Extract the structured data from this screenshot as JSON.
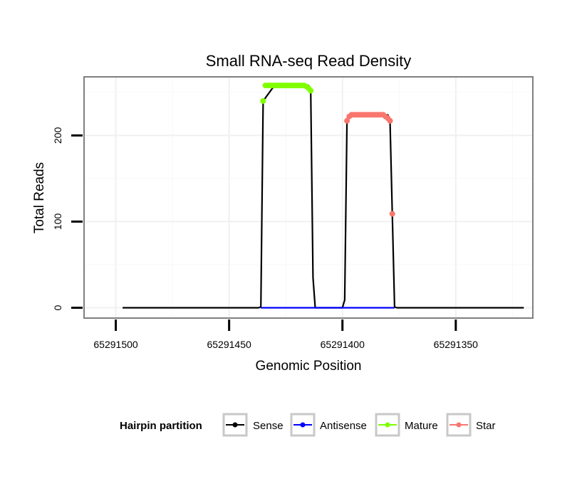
{
  "chart_data": {
    "type": "line",
    "title": "Small RNA-seq Read Density",
    "xlabel": "Genomic Position",
    "ylabel": "Total Reads",
    "x_reversed": true,
    "xlim": [
      65291514,
      65291316
    ],
    "ylim": [
      -12,
      268
    ],
    "x_ticks": [
      {
        "value": 65291500,
        "label": "65291500"
      },
      {
        "value": 65291450,
        "label": "65291450"
      },
      {
        "value": 65291400,
        "label": "65291400"
      },
      {
        "value": 65291350,
        "label": "65291350"
      }
    ],
    "y_ticks": [
      {
        "value": 0,
        "label": "0"
      },
      {
        "value": 100,
        "label": "100"
      },
      {
        "value": 200,
        "label": "200"
      }
    ],
    "grid": true,
    "series": [
      {
        "name": "Sense",
        "color": "#000000",
        "marker": false,
        "x": [
          65291497,
          65291437,
          65291436,
          65291435,
          65291430,
          65291420,
          65291415,
          65291414,
          65291413,
          65291412,
          65291400,
          65291399,
          65291398,
          65291397,
          65291380,
          65291379,
          65291378,
          65291377,
          65291376,
          65291320
        ],
        "y": [
          0,
          0,
          1,
          240,
          258,
          258,
          258,
          252,
          35,
          0,
          0,
          9,
          217,
          224,
          224,
          217,
          109,
          1,
          0,
          0
        ]
      },
      {
        "name": "Antisense",
        "color": "#0000ff",
        "marker": false,
        "x": [
          65291436,
          65291377
        ],
        "y": [
          0,
          0
        ]
      },
      {
        "name": "Mature",
        "color": "#7fff00",
        "marker": true,
        "x": [
          65291435,
          65291434,
          65291433,
          65291432,
          65291431,
          65291430,
          65291429,
          65291428,
          65291427,
          65291426,
          65291425,
          65291424,
          65291423,
          65291422,
          65291421,
          65291420,
          65291419,
          65291418,
          65291417,
          65291416,
          65291415,
          65291414
        ],
        "y": [
          240,
          258,
          258,
          258,
          258,
          258,
          258,
          258,
          258,
          258,
          258,
          258,
          258,
          258,
          258,
          258,
          258,
          258,
          258,
          257,
          255,
          252
        ]
      },
      {
        "name": "Star",
        "color": "#f8766d",
        "marker": true,
        "x": [
          65291398,
          65291397,
          65291396,
          65291395,
          65291394,
          65291393,
          65291392,
          65291391,
          65291390,
          65291389,
          65291388,
          65291387,
          65291386,
          65291385,
          65291384,
          65291383,
          65291382,
          65291381,
          65291380,
          65291379,
          65291378
        ],
        "y": [
          217,
          222,
          224,
          224,
          224,
          224,
          224,
          224,
          224,
          224,
          224,
          224,
          224,
          224,
          224,
          224,
          224,
          222,
          220,
          217,
          109
        ]
      }
    ],
    "legend": {
      "title": "Hairpin partition",
      "position": "bottom",
      "items": [
        {
          "label": "Sense",
          "color": "#000000"
        },
        {
          "label": "Antisense",
          "color": "#0000ff"
        },
        {
          "label": "Mature",
          "color": "#7fff00"
        },
        {
          "label": "Star",
          "color": "#f8766d"
        }
      ]
    }
  }
}
